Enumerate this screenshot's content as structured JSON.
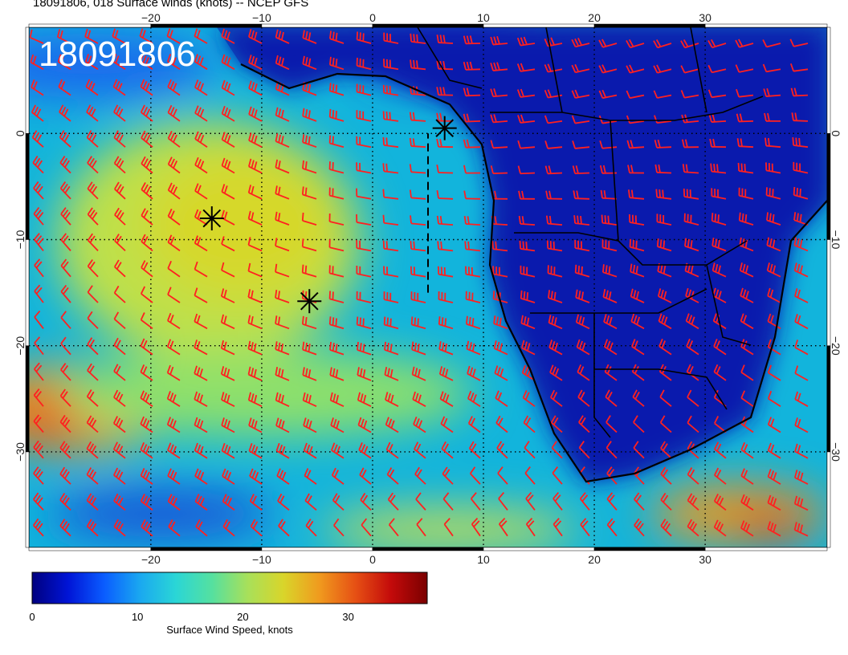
{
  "title": "18091806, 018 Surface winds (knots) -- NCEP GFS",
  "map": {
    "stamp": "18091806",
    "extent": {
      "lon": [
        -31,
        41
      ],
      "lat": [
        -39,
        10
      ]
    },
    "lon_ticks": [
      -20,
      -10,
      0,
      10,
      20,
      30
    ],
    "lat_ticks": [
      0,
      -10,
      -20,
      -30
    ],
    "lon_tick_labels": [
      "−20",
      "−10",
      "0",
      "10",
      "20",
      "30"
    ],
    "lat_tick_labels": [
      "0",
      "−10",
      "−20",
      "−30"
    ],
    "gridlines": "dotted",
    "markers": [
      {
        "name": "star-1",
        "lon": 6.5,
        "lat": 0.5
      },
      {
        "name": "star-2",
        "lon": -14.5,
        "lat": -8
      },
      {
        "name": "star-3",
        "lon": -5.7,
        "lat": -15.8
      }
    ],
    "track": {
      "lon": [
        5,
        5
      ],
      "lat": [
        -15,
        0
      ]
    },
    "barb_color": "#ff2020"
  },
  "colorbar": {
    "min": 0,
    "max": 37.5,
    "ticks": [
      0,
      10,
      20,
      30
    ],
    "tick_labels": [
      "0",
      "10",
      "20",
      "30"
    ],
    "label": "Surface Wind Speed, knots",
    "colors": [
      "#00007f",
      "#0014d6",
      "#0a5cff",
      "#1aa8f0",
      "#2ad6d6",
      "#55e0a0",
      "#a8e05a",
      "#d9d52a",
      "#f09a1e",
      "#e65014",
      "#c30a0a",
      "#7a0000"
    ]
  }
}
